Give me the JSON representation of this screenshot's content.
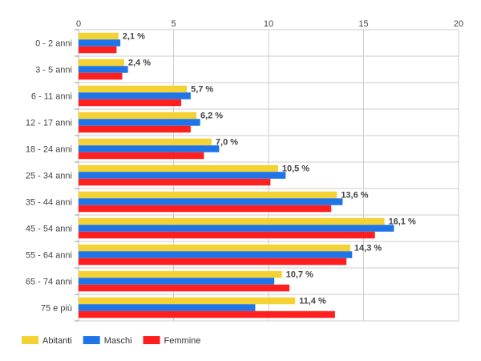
{
  "chart_data": {
    "type": "bar",
    "orientation": "horizontal",
    "categories": [
      "0 - 2 anni",
      "3 - 5 anni",
      "6 - 11 anni",
      "12 - 17 anni",
      "18 - 24 anni",
      "25 - 34 anni",
      "35 - 44 anni",
      "45 - 54 anni",
      "55 - 64 anni",
      "65 - 74 anni",
      "75 e più"
    ],
    "series": [
      {
        "name": "Abitanti",
        "color": "#f4d234",
        "values": [
          2.1,
          2.4,
          5.7,
          6.2,
          7.0,
          10.5,
          13.6,
          16.1,
          14.3,
          10.7,
          11.4
        ]
      },
      {
        "name": "Maschi",
        "color": "#1f75e8",
        "values": [
          2.2,
          2.6,
          5.9,
          6.4,
          7.4,
          10.9,
          13.9,
          16.6,
          14.4,
          10.3,
          9.3
        ]
      },
      {
        "name": "Femmine",
        "color": "#ff1f1f",
        "values": [
          2.0,
          2.3,
          5.4,
          5.9,
          6.6,
          10.1,
          13.3,
          15.6,
          14.1,
          11.1,
          13.5
        ]
      }
    ],
    "data_labels": [
      "2,1 %",
      "2,4 %",
      "5,7 %",
      "6,2 %",
      "7,0 %",
      "10,5 %",
      "13,6 %",
      "16,1 %",
      "14,3 %",
      "10,7 %",
      "11,4 %"
    ],
    "x_ticks": [
      0,
      5,
      10,
      15,
      20
    ],
    "xlim": [
      0,
      20
    ],
    "grid": true,
    "legend_position": "bottom-left",
    "title": "",
    "xlabel": "",
    "ylabel": ""
  }
}
